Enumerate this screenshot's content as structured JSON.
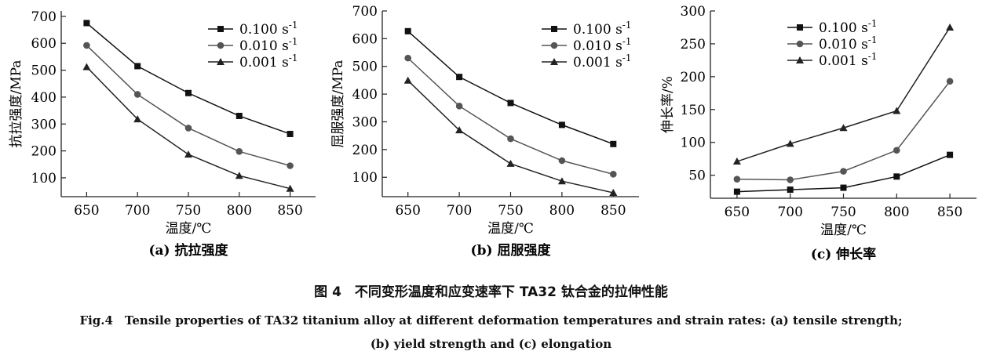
{
  "chart_data": [
    {
      "type": "line",
      "panel_label": "(a) 抗拉强度",
      "ylabel": "抗拉强度/MPa",
      "xlabel": "温度/℃",
      "x": [
        650,
        700,
        750,
        800,
        850
      ],
      "xlim": [
        625,
        875
      ],
      "ylim": [
        30,
        720
      ],
      "yticks": [
        100,
        200,
        300,
        400,
        500,
        600,
        700
      ],
      "legend_position": "top-right",
      "series": [
        {
          "name": "0.100 s",
          "name_sup": "-1",
          "marker": "square",
          "color": "#111111",
          "values": [
            675,
            515,
            415,
            330,
            263
          ]
        },
        {
          "name": "0.010 s",
          "name_sup": "-1",
          "marker": "circle",
          "color": "#555555",
          "values": [
            592,
            410,
            285,
            198,
            145
          ]
        },
        {
          "name": "0.001 s",
          "name_sup": "-1",
          "marker": "triangle",
          "color": "#222222",
          "values": [
            512,
            318,
            187,
            108,
            60
          ]
        }
      ]
    },
    {
      "type": "line",
      "panel_label": "(b) 屈服强度",
      "ylabel": "屈服强度/MPa",
      "xlabel": "温度/℃",
      "x": [
        650,
        700,
        750,
        800,
        850
      ],
      "xlim": [
        625,
        875
      ],
      "ylim": [
        30,
        700
      ],
      "yticks": [
        100,
        200,
        300,
        400,
        500,
        600,
        700
      ],
      "legend_position": "top-right",
      "series": [
        {
          "name": "0.100 s",
          "name_sup": "-1",
          "marker": "square",
          "color": "#111111",
          "values": [
            627,
            462,
            368,
            289,
            220
          ]
        },
        {
          "name": "0.010 s",
          "name_sup": "-1",
          "marker": "circle",
          "color": "#555555",
          "values": [
            530,
            357,
            239,
            160,
            111
          ]
        },
        {
          "name": "0.001 s",
          "name_sup": "-1",
          "marker": "triangle",
          "color": "#222222",
          "values": [
            449,
            270,
            149,
            86,
            44
          ]
        }
      ]
    },
    {
      "type": "line",
      "panel_label": "(c) 伸长率",
      "ylabel": "伸长率/%",
      "xlabel": "温度/℃",
      "x": [
        650,
        700,
        750,
        800,
        850
      ],
      "xlim": [
        625,
        875
      ],
      "ylim": [
        15,
        300
      ],
      "yticks": [
        50,
        100,
        150,
        200,
        250,
        300
      ],
      "legend_position": "top-left",
      "series": [
        {
          "name": "0.100 s",
          "name_sup": "-1",
          "marker": "square",
          "color": "#111111",
          "values": [
            25,
            28,
            31,
            48,
            81
          ]
        },
        {
          "name": "0.010 s",
          "name_sup": "-1",
          "marker": "circle",
          "color": "#555555",
          "values": [
            44,
            43,
            56,
            88,
            193
          ]
        },
        {
          "name": "0.001 s",
          "name_sup": "-1",
          "marker": "triangle",
          "color": "#222222",
          "values": [
            71,
            98,
            122,
            148,
            275
          ]
        }
      ]
    }
  ],
  "captions": {
    "chinese": "图 4　不同变形温度和应变速率下 TA32 钛合金的拉伸性能",
    "english_line1": "Fig.4　Tensile properties of TA32 titanium alloy at different deformation temperatures and strain rates: (a) tensile strength;",
    "english_line2": "(b) yield strength and (c) elongation"
  }
}
